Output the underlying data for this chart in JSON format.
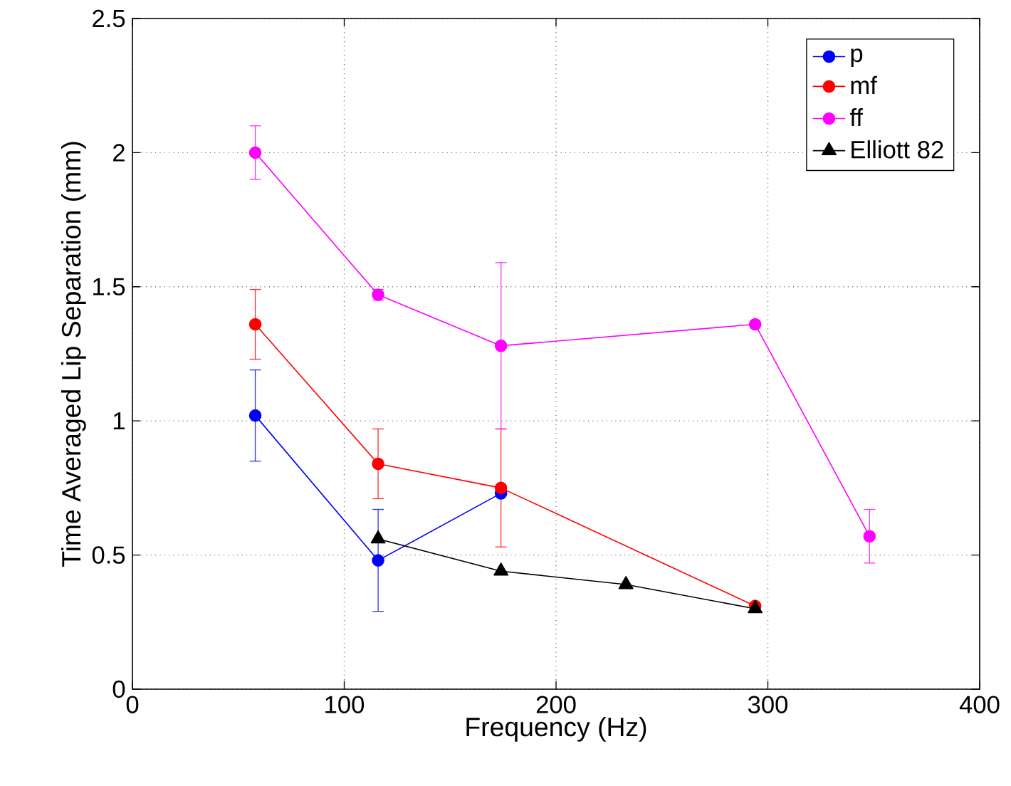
{
  "chart_data": {
    "type": "line",
    "xlabel": "Frequency (Hz)",
    "ylabel": "Time Averaged Lip Separation (mm)",
    "xlim": [
      0,
      400
    ],
    "xticks": [
      0,
      100,
      200,
      300,
      400
    ],
    "ylim": [
      0,
      2.5
    ],
    "yticks": [
      0,
      0.5,
      1,
      1.5,
      2,
      2.5
    ],
    "grid": true,
    "legend": "top right",
    "line_style": "solid",
    "series": [
      {
        "name": "p",
        "color": "#0000ff",
        "marker": "circle",
        "x": [
          58,
          116,
          174
        ],
        "values": [
          1.02,
          0.48,
          0.73
        ],
        "errors": [
          0.17,
          0.19,
          null
        ]
      },
      {
        "name": "mf",
        "color": "#ff0000",
        "marker": "circle",
        "x": [
          58,
          116,
          174,
          294
        ],
        "values": [
          1.36,
          0.84,
          0.75,
          0.31
        ],
        "errors": [
          0.13,
          0.13,
          0.22,
          null
        ]
      },
      {
        "name": "ff",
        "color": "#ff00ff",
        "marker": "circle",
        "x": [
          58,
          116,
          174,
          294,
          348
        ],
        "values": [
          2.0,
          1.47,
          1.28,
          1.36,
          0.57
        ],
        "errors": [
          0.1,
          0.02,
          0.31,
          null,
          0.1
        ]
      },
      {
        "name": "Elliott 82",
        "color": "#000000",
        "marker": "triangle",
        "x": [
          116,
          174,
          233,
          294
        ],
        "values": [
          0.56,
          0.44,
          0.39,
          0.3
        ]
      }
    ]
  }
}
